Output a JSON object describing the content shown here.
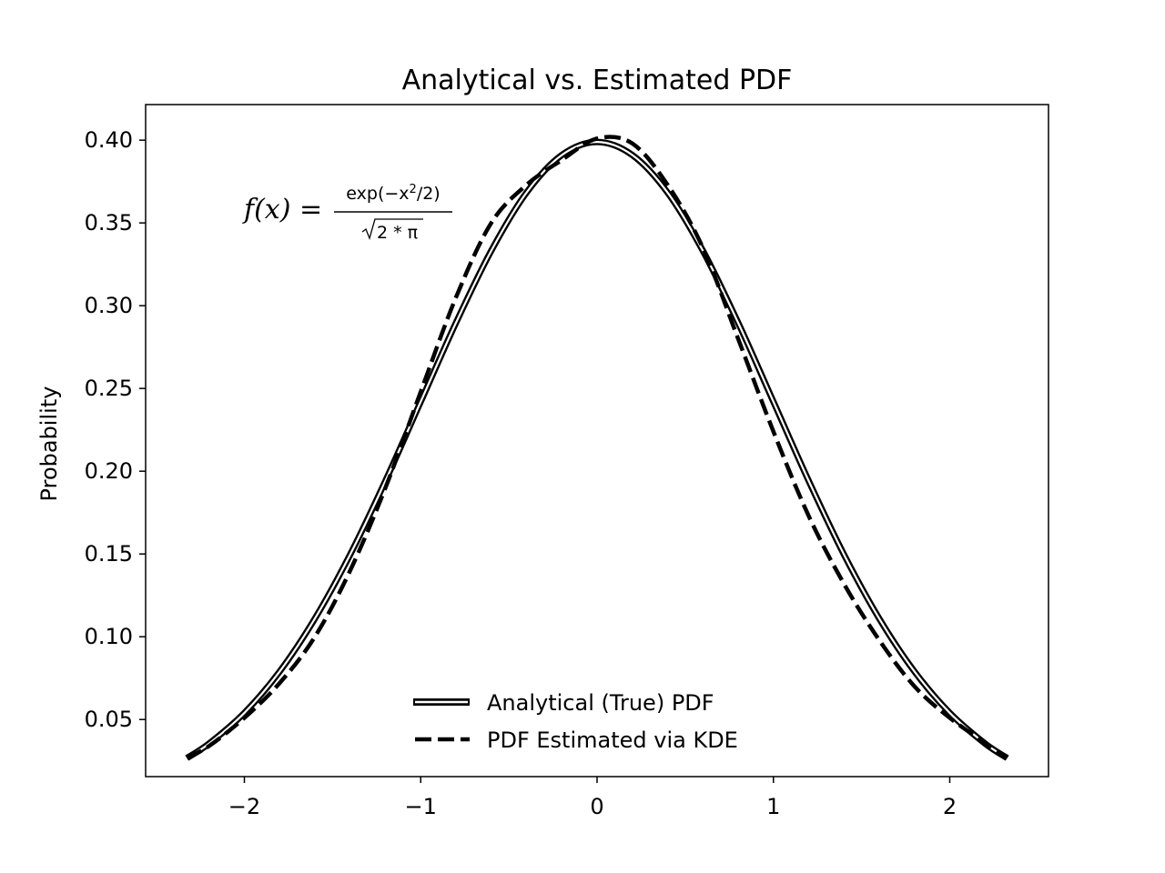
{
  "chart_data": {
    "type": "line",
    "title": "Analytical vs. Estimated PDF",
    "xlabel": "",
    "ylabel": "Probability",
    "xlim": [
      -2.56,
      2.56
    ],
    "ylim": [
      0.0155,
      0.4215
    ],
    "grid": false,
    "legend": "lower center",
    "x_ticks": [
      -2,
      -1,
      0,
      1,
      2
    ],
    "x_tick_labels": [
      "−2",
      "−1",
      "0",
      "1",
      "2"
    ],
    "y_ticks": [
      0.05,
      0.1,
      0.15,
      0.2,
      0.25,
      0.3,
      0.35,
      0.4
    ],
    "y_tick_labels": [
      "0.05",
      "0.10",
      "0.15",
      "0.20",
      "0.25",
      "0.30",
      "0.35",
      "0.40"
    ],
    "annotation": {
      "lhs": "f(x) =",
      "numerator_base": "exp(−x",
      "numerator_sup": "2",
      "numerator_tail": "/2)",
      "denominator": "2 * π",
      "position_data": [
        -2.0,
        0.355
      ]
    },
    "series": [
      {
        "name": "Analytical (True) PDF",
        "style": "solid-outlined",
        "color": "#000000",
        "x": [
          -2.326,
          -2.2,
          -2.0,
          -1.8,
          -1.6,
          -1.4,
          -1.2,
          -1.0,
          -0.8,
          -0.6,
          -0.4,
          -0.2,
          0.0,
          0.2,
          0.4,
          0.6,
          0.8,
          1.0,
          1.2,
          1.4,
          1.6,
          1.8,
          2.0,
          2.2,
          2.326
        ],
        "y": [
          0.0267,
          0.0355,
          0.054,
          0.079,
          0.111,
          0.1497,
          0.1942,
          0.242,
          0.2897,
          0.3332,
          0.3683,
          0.391,
          0.3989,
          0.391,
          0.3683,
          0.3332,
          0.2897,
          0.242,
          0.1942,
          0.1497,
          0.111,
          0.079,
          0.054,
          0.0355,
          0.0267
        ]
      },
      {
        "name": "PDF Estimated via KDE",
        "style": "dashed",
        "color": "#000000",
        "x": [
          -2.326,
          -2.2,
          -2.0,
          -1.8,
          -1.6,
          -1.4,
          -1.2,
          -1.0,
          -0.8,
          -0.6,
          -0.4,
          -0.2,
          0.0,
          0.2,
          0.4,
          0.6,
          0.8,
          1.0,
          1.2,
          1.4,
          1.6,
          1.8,
          2.0,
          2.2,
          2.326
        ],
        "y": [
          0.0267,
          0.034,
          0.051,
          0.072,
          0.1,
          0.14,
          0.19,
          0.248,
          0.305,
          0.35,
          0.373,
          0.388,
          0.401,
          0.398,
          0.373,
          0.335,
          0.28,
          0.224,
          0.173,
          0.132,
          0.098,
          0.07,
          0.051,
          0.036,
          0.0267
        ]
      }
    ]
  }
}
